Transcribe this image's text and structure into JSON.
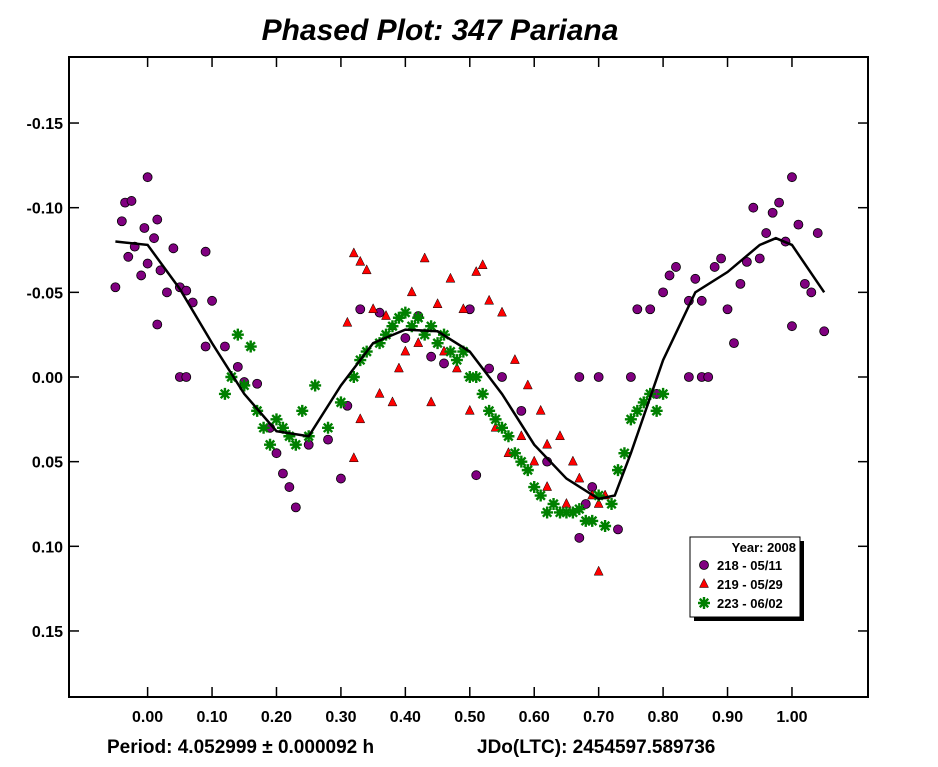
{
  "chart_data": {
    "type": "scatter",
    "title": "Phased Plot: 347 Pariana",
    "annotations": [
      "Period: 4.052999 ± 0.000092 h",
      "JDo(LTC): 2454597.589736"
    ],
    "xlim": [
      -0.122,
      1.118
    ],
    "ylim": [
      -0.189,
      0.189
    ],
    "y_reversed": true,
    "xticks": [
      {
        "value": 0,
        "label": "0.00"
      },
      {
        "value": 0.1,
        "label": "0.10"
      },
      {
        "value": 0.2,
        "label": "0.20"
      },
      {
        "value": 0.3,
        "label": "0.30"
      },
      {
        "value": 0.4,
        "label": "0.40"
      },
      {
        "value": 0.5,
        "label": "0.50"
      },
      {
        "value": 0.6,
        "label": "0.60"
      },
      {
        "value": 0.7,
        "label": "0.70"
      },
      {
        "value": 0.8,
        "label": "0.80"
      },
      {
        "value": 0.9,
        "label": "0.90"
      },
      {
        "value": 1,
        "label": "1.00"
      }
    ],
    "yticks": [
      -0.15,
      {
        "value": -0.1,
        "label": "-0.10"
      },
      -0.05,
      {
        "value": 0,
        "label": "0.00"
      },
      0.05,
      {
        "value": 0.1,
        "label": "0.10"
      },
      0.15
    ],
    "legend_title": "Year: 2008",
    "legend_position": "lower right",
    "series": [
      {
        "name": "218 - 05/11",
        "color": "#800080",
        "marker": "circle",
        "x": [
          -0.05,
          -0.04,
          -0.035,
          -0.03,
          -0.025,
          -0.02,
          -0.01,
          -0.005,
          0.0,
          0.0,
          0.01,
          0.015,
          0.02,
          0.03,
          0.04,
          0.05,
          0.06,
          0.07,
          0.09,
          0.015,
          0.05,
          0.06,
          0.09,
          0.1,
          0.12,
          0.14,
          0.15,
          0.17,
          0.19,
          0.2,
          0.22,
          0.23,
          0.21,
          0.25,
          0.28,
          0.3,
          0.31,
          0.33,
          0.36,
          0.4,
          0.42,
          0.44,
          0.46,
          0.5,
          0.51,
          0.53,
          0.55,
          0.58,
          0.62,
          0.67,
          0.68,
          0.69,
          0.7,
          0.67,
          0.73,
          0.75,
          0.76,
          0.78,
          0.79,
          0.8,
          0.81,
          0.82,
          0.84,
          0.85,
          0.86,
          0.84,
          0.86,
          0.87,
          0.88,
          0.89,
          0.9,
          0.91,
          0.92,
          0.93,
          0.94,
          0.95,
          0.96,
          0.97,
          0.98,
          0.99,
          1.0,
          1.01,
          1.02,
          1.0,
          1.04,
          1.05,
          1.03
        ],
        "values": [
          -0.053,
          -0.092,
          -0.103,
          -0.071,
          -0.104,
          -0.077,
          -0.06,
          -0.088,
          -0.067,
          -0.118,
          -0.082,
          -0.093,
          -0.063,
          -0.05,
          -0.076,
          -0.053,
          -0.051,
          -0.044,
          -0.074,
          -0.031,
          0.0,
          0.0,
          -0.018,
          -0.045,
          -0.018,
          -0.006,
          0.003,
          0.004,
          0.03,
          0.045,
          0.065,
          0.077,
          0.057,
          0.04,
          0.037,
          0.06,
          0.017,
          -0.04,
          -0.038,
          -0.023,
          -0.036,
          -0.012,
          -0.008,
          -0.04,
          0.058,
          -0.005,
          0.0,
          0.02,
          0.05,
          0.0,
          0.075,
          0.065,
          0.0,
          0.095,
          0.09,
          0.0,
          -0.04,
          -0.04,
          0.01,
          -0.05,
          -0.06,
          -0.065,
          -0.045,
          -0.058,
          -0.045,
          0.0,
          0.0,
          0.0,
          -0.065,
          -0.07,
          -0.04,
          -0.02,
          -0.055,
          -0.068,
          -0.1,
          -0.07,
          -0.085,
          -0.097,
          -0.103,
          -0.08,
          -0.118,
          -0.09,
          -0.055,
          -0.03,
          -0.085,
          -0.027,
          -0.05
        ]
      },
      {
        "name": "219 - 05/29",
        "color": "#ff0000",
        "marker": "triangle",
        "x": [
          0.31,
          0.32,
          0.33,
          0.34,
          0.35,
          0.37,
          0.38,
          0.39,
          0.41,
          0.43,
          0.45,
          0.47,
          0.49,
          0.51,
          0.52,
          0.53,
          0.55,
          0.57,
          0.59,
          0.61,
          0.62,
          0.64,
          0.66,
          0.67,
          0.69,
          0.7,
          0.7,
          0.71,
          0.32,
          0.33,
          0.36,
          0.38,
          0.4,
          0.42,
          0.44,
          0.46,
          0.48,
          0.5,
          0.54,
          0.56,
          0.58,
          0.6,
          0.62,
          0.65
        ],
        "values": [
          -0.032,
          -0.073,
          -0.068,
          -0.063,
          -0.04,
          -0.036,
          -0.03,
          -0.005,
          -0.05,
          -0.07,
          -0.043,
          -0.058,
          -0.04,
          -0.062,
          -0.066,
          -0.045,
          -0.038,
          -0.01,
          0.005,
          0.02,
          0.04,
          0.035,
          0.05,
          0.06,
          0.07,
          0.075,
          0.115,
          0.07,
          0.048,
          0.025,
          0.01,
          0.015,
          -0.015,
          -0.02,
          0.015,
          -0.015,
          -0.005,
          0.02,
          0.03,
          0.045,
          0.035,
          0.05,
          0.065,
          0.075
        ]
      },
      {
        "name": "223 - 06/02",
        "color": "#008000",
        "marker": "asterisk",
        "x": [
          0.12,
          0.13,
          0.14,
          0.15,
          0.16,
          0.17,
          0.18,
          0.19,
          0.2,
          0.21,
          0.22,
          0.23,
          0.24,
          0.25,
          0.26,
          0.28,
          0.3,
          0.32,
          0.33,
          0.34,
          0.36,
          0.37,
          0.38,
          0.39,
          0.4,
          0.41,
          0.42,
          0.43,
          0.44,
          0.45,
          0.46,
          0.47,
          0.48,
          0.49,
          0.5,
          0.51,
          0.52,
          0.53,
          0.54,
          0.55,
          0.56,
          0.57,
          0.58,
          0.59,
          0.6,
          0.61,
          0.62,
          0.63,
          0.64,
          0.65,
          0.66,
          0.67,
          0.68,
          0.69,
          0.7,
          0.71,
          0.72,
          0.73,
          0.74,
          0.75,
          0.76,
          0.77,
          0.78,
          0.79,
          0.8
        ],
        "values": [
          0.01,
          0.0,
          -0.025,
          0.005,
          -0.018,
          0.02,
          0.03,
          0.04,
          0.025,
          0.03,
          0.035,
          0.04,
          0.02,
          0.035,
          0.005,
          0.03,
          0.015,
          0.0,
          -0.01,
          -0.015,
          -0.02,
          -0.025,
          -0.03,
          -0.035,
          -0.038,
          -0.03,
          -0.035,
          -0.025,
          -0.03,
          -0.02,
          -0.025,
          -0.015,
          -0.01,
          -0.015,
          0.0,
          0.0,
          0.01,
          0.02,
          0.025,
          0.03,
          0.035,
          0.045,
          0.05,
          0.055,
          0.065,
          0.07,
          0.08,
          0.075,
          0.08,
          0.08,
          0.08,
          0.078,
          0.085,
          0.085,
          0.07,
          0.088,
          0.075,
          0.055,
          0.045,
          0.025,
          0.02,
          0.015,
          0.01,
          0.02,
          0.01
        ]
      }
    ],
    "fit_curve": {
      "color": "#000000",
      "x": [
        -0.05,
        0.0,
        0.05,
        0.1,
        0.15,
        0.2,
        0.25,
        0.3,
        0.35,
        0.4,
        0.45,
        0.5,
        0.55,
        0.6,
        0.65,
        0.7,
        0.725,
        0.75,
        0.8,
        0.85,
        0.9,
        0.95,
        0.975,
        1.0,
        1.05
      ],
      "values": [
        -0.08,
        -0.078,
        -0.052,
        -0.02,
        0.01,
        0.032,
        0.035,
        0.005,
        -0.02,
        -0.028,
        -0.027,
        -0.015,
        0.01,
        0.04,
        0.06,
        0.072,
        0.07,
        0.045,
        -0.01,
        -0.05,
        -0.062,
        -0.078,
        -0.082,
        -0.078,
        -0.05
      ]
    }
  }
}
